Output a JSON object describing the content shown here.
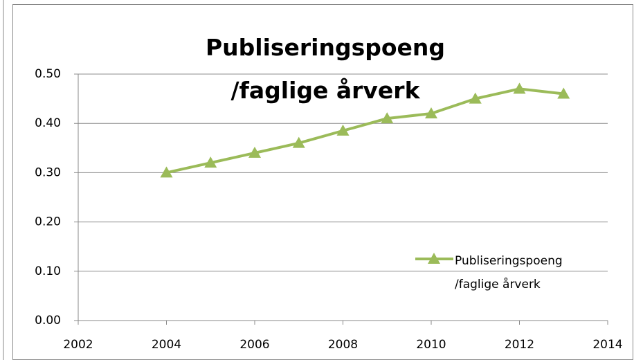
{
  "chart_data": {
    "type": "line",
    "title": "Publiseringspoeng /faglige årverk",
    "x": [
      2004,
      2005,
      2006,
      2007,
      2008,
      2009,
      2010,
      2011,
      2012,
      2013
    ],
    "series": [
      {
        "name": "Publiseringspoeng /faglige årverk",
        "color": "#9bbb59",
        "values": [
          0.3,
          0.32,
          0.34,
          0.36,
          0.385,
          0.41,
          0.42,
          0.45,
          0.47,
          0.46
        ]
      }
    ],
    "xlim": [
      2002,
      2014
    ],
    "xticks": [
      2002,
      2004,
      2006,
      2008,
      2010,
      2012,
      2014
    ],
    "ylim": [
      0,
      0.5
    ],
    "yticks": [
      {
        "value": 0,
        "label": "0.00"
      },
      {
        "value": 0.1,
        "label": "0.10"
      },
      {
        "value": 0.2,
        "label": "0.20"
      },
      {
        "value": 0.3,
        "label": "0.30"
      },
      {
        "value": 0.4,
        "label": "0.40"
      },
      {
        "value": 0.5,
        "label": "0.50"
      }
    ],
    "grid": true,
    "legend": "right"
  }
}
